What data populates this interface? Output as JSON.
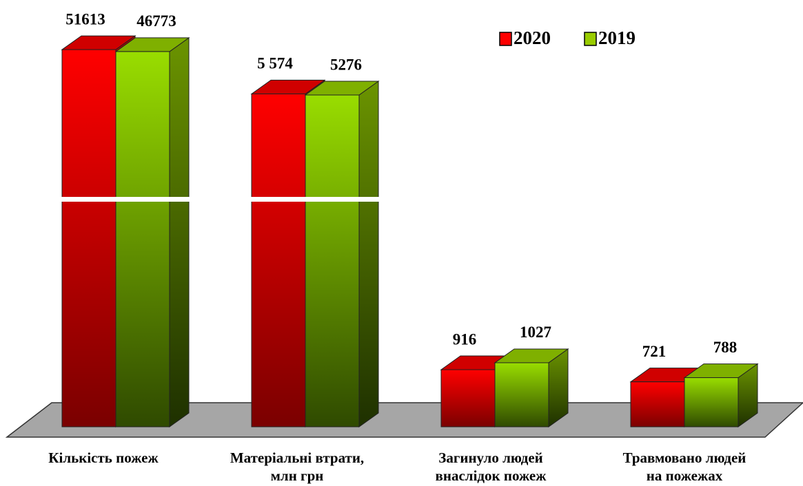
{
  "chart_data": {
    "type": "bar3d",
    "categories": [
      [
        "Кількість пожеж"
      ],
      [
        "Матеріальні втрати,",
        "млн грн"
      ],
      [
        "Загинуло людей",
        "внаслідок пожеж"
      ],
      [
        "Травмовано людей",
        "на пожежах"
      ]
    ],
    "series": [
      {
        "name": "2020",
        "color": "#ff0000",
        "values": [
          51613,
          5574,
          916,
          721
        ],
        "value_labels": [
          "51613",
          "5 574",
          "916",
          "721"
        ]
      },
      {
        "name": "2019",
        "color": "#99cc00",
        "values": [
          46773,
          5276,
          1027,
          788
        ]
      }
    ],
    "axis_break": true,
    "legend": "top-right"
  }
}
